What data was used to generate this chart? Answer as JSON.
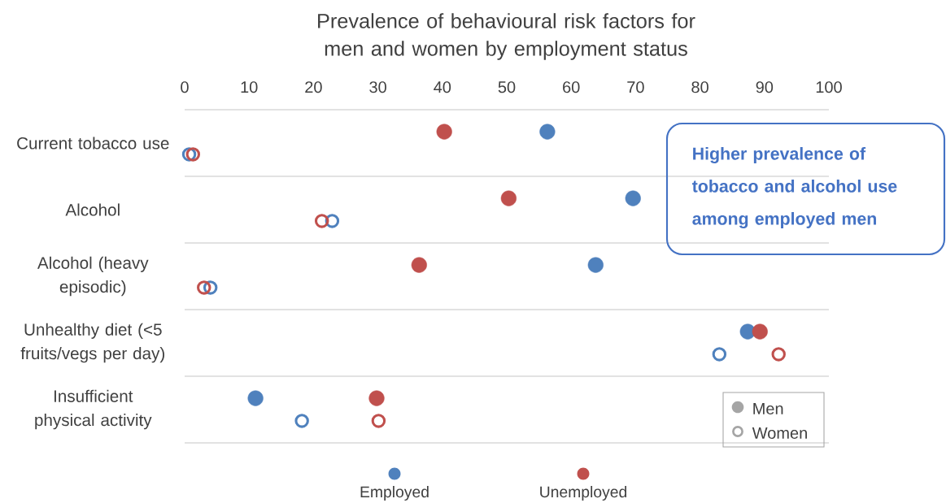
{
  "chart_data": {
    "type": "scatter",
    "orientation": "horizontal",
    "title": "Prevalence of behavioural risk factors for men and women by employment status",
    "categories": [
      "Current tobacco use",
      "Alcohol",
      "Alcohol (heavy episodic)",
      "Unhealthy diet (<5 fruits/vegs per day)",
      "Insufficient physical activity"
    ],
    "series": [
      {
        "name": "Employed",
        "color": "#4f81bd",
        "values": [
          56.3,
          69.6,
          63.8,
          87.4,
          11.0
        ]
      },
      {
        "name": "Unemployed",
        "color": "#c0504d",
        "values": [
          40.3,
          50.3,
          36.4,
          89.3,
          29.8
        ]
      },
      {
        "color": "#4f81bd",
        "values": [
          0.7,
          22.9,
          4.0,
          83.0,
          18.2
        ]
      },
      {
        "color": "#c0504d",
        "values": [
          1.3,
          21.3,
          3.0,
          92.2,
          30.1
        ]
      }
    ],
    "xlim": [
      0,
      100
    ],
    "xticks": [
      0,
      10,
      20,
      30,
      40,
      50,
      60,
      70,
      80,
      90,
      100
    ],
    "legend": "bottom",
    "marker": "circle",
    "annotations": [
      "Higher prevalence of tobacco and alcohol use among employed men",
      "Men",
      "Women"
    ]
  }
}
